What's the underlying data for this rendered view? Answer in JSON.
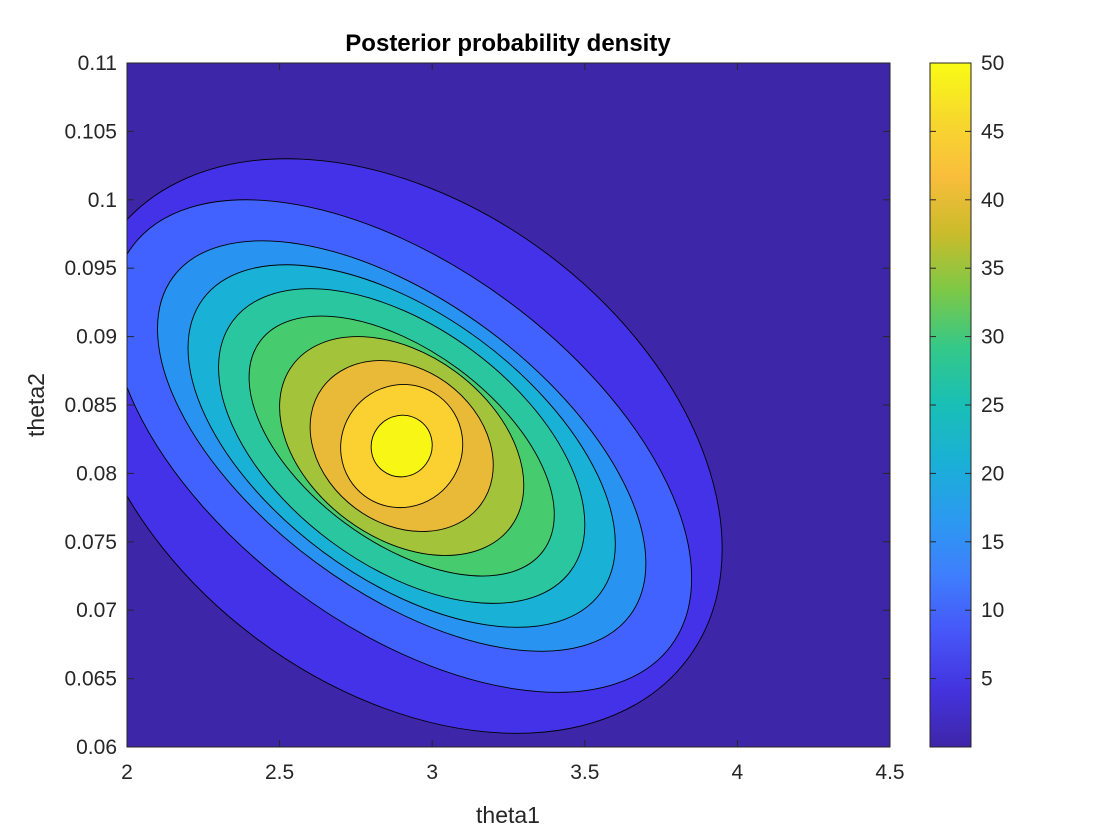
{
  "chart_data": {
    "type": "heatmap",
    "subtype": "filled-contour",
    "title": "Posterior probability density",
    "xlabel": "theta1",
    "ylabel": "theta2",
    "xlim": [
      2,
      4.5
    ],
    "ylim": [
      0.06,
      0.11
    ],
    "xticks": [
      "2",
      "2.5",
      "3",
      "3.5",
      "4",
      "4.5"
    ],
    "yticks": [
      "0.06",
      "0.065",
      "0.07",
      "0.075",
      "0.08",
      "0.085",
      "0.09",
      "0.095",
      "0.1",
      "0.105",
      "0.11"
    ],
    "grid": false,
    "colormap": "parula",
    "colorbar": {
      "location": "right",
      "limits": [
        0,
        50
      ],
      "ticks": [
        "5",
        "10",
        "15",
        "20",
        "25",
        "30",
        "35",
        "40",
        "45",
        "50"
      ]
    },
    "contour_levels": [
      1,
      7,
      12,
      17,
      22,
      27,
      32,
      37,
      42,
      47
    ],
    "contours": [
      {
        "level": 1,
        "center": [
          2.9,
          0.082
        ],
        "theta1_range": [
          1.85,
          3.95
        ],
        "theta2_range": [
          0.0605,
          0.1025
        ]
      },
      {
        "level": 7,
        "center": [
          2.9,
          0.082
        ],
        "theta1_range": [
          1.95,
          3.85
        ],
        "theta2_range": [
          0.064,
          0.1
        ]
      },
      {
        "level": 12,
        "center": [
          2.9,
          0.082
        ],
        "theta1_range": [
          2.1,
          3.7
        ],
        "theta2_range": [
          0.066,
          0.096
        ]
      },
      {
        "level": 17,
        "center": [
          2.9,
          0.082
        ],
        "theta1_range": [
          2.2,
          3.6
        ],
        "theta2_range": [
          0.068,
          0.0945
        ]
      },
      {
        "level": 22,
        "center": [
          2.9,
          0.082
        ],
        "theta1_range": [
          2.3,
          3.5
        ],
        "theta2_range": [
          0.07,
          0.093
        ]
      },
      {
        "level": 27,
        "center": [
          2.9,
          0.082
        ],
        "theta1_range": [
          2.4,
          3.4
        ],
        "theta2_range": [
          0.072,
          0.091
        ]
      },
      {
        "level": 32,
        "center": [
          2.9,
          0.082
        ],
        "theta1_range": [
          2.5,
          3.3
        ],
        "theta2_range": [
          0.0735,
          0.0895
        ]
      },
      {
        "level": 37,
        "center": [
          2.9,
          0.082
        ],
        "theta1_range": [
          2.6,
          3.2
        ],
        "theta2_range": [
          0.075,
          0.0875
        ]
      },
      {
        "level": 42,
        "center": [
          2.9,
          0.082
        ],
        "theta1_range": [
          2.7,
          3.1
        ],
        "theta2_range": [
          0.0765,
          0.0855
        ]
      },
      {
        "level": 47,
        "center": [
          2.9,
          0.082
        ],
        "theta1_range": [
          2.8,
          3.0
        ],
        "theta2_range": [
          0.0795,
          0.084
        ]
      }
    ],
    "peak": {
      "theta1": 2.9,
      "theta2": 0.082,
      "density": 50
    }
  },
  "colors": {
    "background_level": "#3e26a8",
    "level_colors": [
      "#4332e8",
      "#4162fe",
      "#2893f0",
      "#19b2d6",
      "#2ac6a0",
      "#46cb6e",
      "#a2c33a",
      "#e9b938",
      "#fbd031",
      "#f8f614"
    ],
    "colormap_stops": [
      "#3e26a8",
      "#4433de",
      "#4656f8",
      "#3f7efd",
      "#2b9af0",
      "#1ab0d6",
      "#19bfb6",
      "#34c889",
      "#7cc847",
      "#c9bc2b",
      "#f9bd3c",
      "#f7d82d",
      "#f9fb15"
    ]
  }
}
